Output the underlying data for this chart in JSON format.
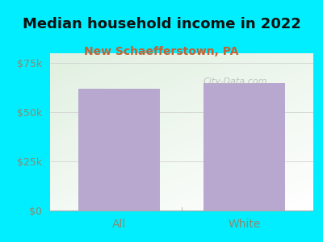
{
  "title": "Median household income in 2022",
  "subtitle": "New Schaefferstown, PA",
  "categories": [
    "All",
    "White"
  ],
  "values": [
    62000,
    65000
  ],
  "bar_color": "#b8a8d0",
  "ylim": [
    0,
    80000
  ],
  "yticks": [
    0,
    25000,
    50000,
    75000
  ],
  "ytick_labels": [
    "$0",
    "$25k",
    "$50k",
    "$75k"
  ],
  "bg_cyan": "#00eeff",
  "plot_bg_topleft": "#d8eed8",
  "plot_bg_bottomright": "#f5f5ee",
  "title_fontsize": 13,
  "subtitle_fontsize": 10,
  "subtitle_color": "#c86030",
  "tick_label_color": "#8a8a70",
  "axis_label_fontsize": 10,
  "watermark_text": "City-Data.com",
  "watermark_color": "#b8b8b8",
  "bar_width": 0.65,
  "xlim": [
    -0.55,
    1.55
  ]
}
